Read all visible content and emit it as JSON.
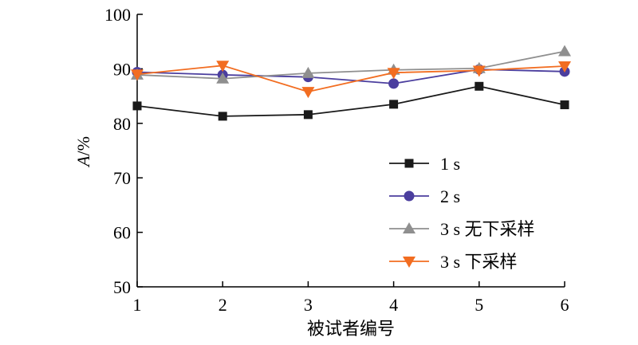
{
  "chart_data": {
    "type": "line",
    "x": [
      1,
      2,
      3,
      4,
      5,
      6
    ],
    "xlabel": "被试者编号",
    "ylabel": "A/%",
    "ylabel_italic": "A",
    "ylabel_unit": "/%",
    "ylim": [
      50,
      100
    ],
    "xlim": [
      1,
      6
    ],
    "yticks": [
      50,
      60,
      70,
      80,
      90,
      100
    ],
    "xticks": [
      1,
      2,
      3,
      4,
      5,
      6
    ],
    "grid": false,
    "legend_position": "right",
    "series": [
      {
        "name": "1 s",
        "marker": "square",
        "color": "#1a1a1a",
        "values": [
          83.2,
          81.3,
          81.6,
          83.5,
          86.8,
          83.4
        ]
      },
      {
        "name": "2 s",
        "marker": "circle",
        "color": "#4b3e9e",
        "values": [
          89.4,
          88.9,
          88.5,
          87.3,
          89.9,
          89.5
        ]
      },
      {
        "name": "3 s 无下采样",
        "marker": "triangle-up",
        "color": "#8f8f8f",
        "values": [
          88.9,
          88.2,
          89.2,
          89.8,
          90.1,
          93.2
        ]
      },
      {
        "name": "3 s 下采样",
        "marker": "triangle-down",
        "color": "#f26d21",
        "values": [
          89.0,
          90.6,
          85.8,
          89.3,
          89.7,
          90.5
        ]
      }
    ]
  }
}
